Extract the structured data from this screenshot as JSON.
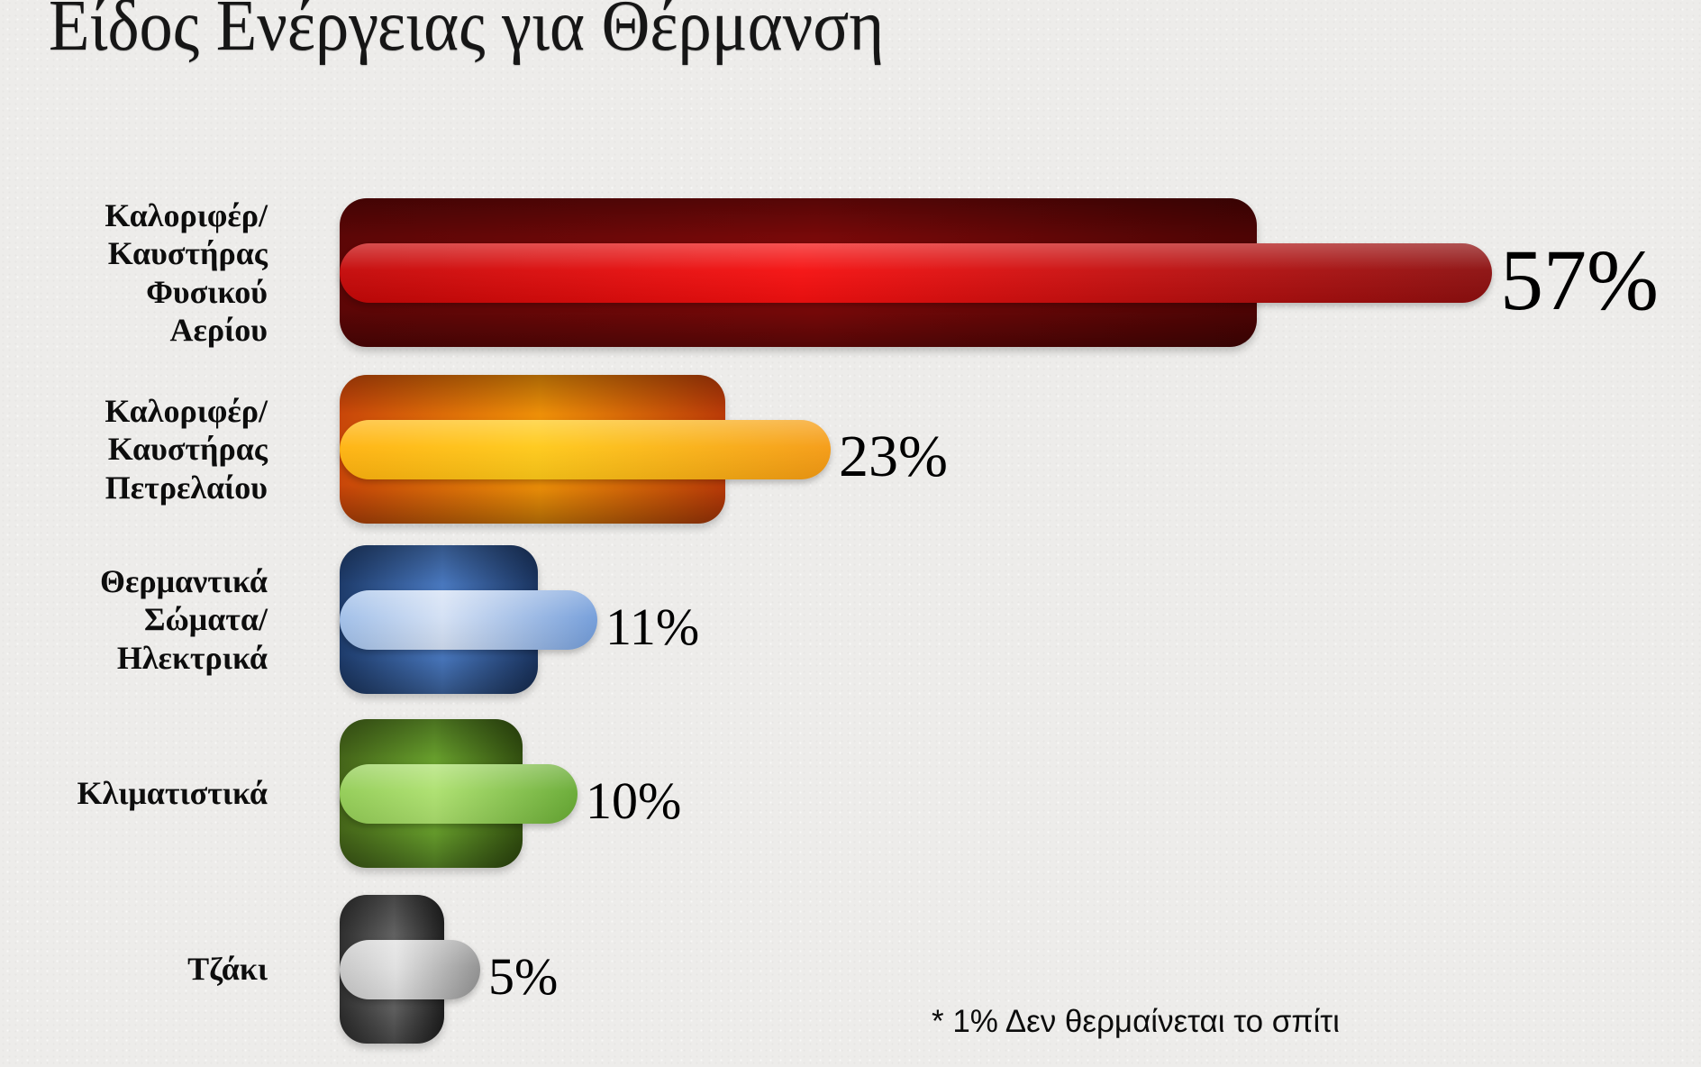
{
  "page": {
    "background_color": "#EDECEA"
  },
  "title": "Είδος Ενέργειας για Θέρμανση",
  "footnote": "* 1% Δεν θερμαίνεται το σπίτι",
  "chart_data": {
    "type": "bar",
    "orientation": "horizontal",
    "title": "Είδος Ενέργειας για Θέρμανση",
    "unit": "%",
    "xlim": [
      0,
      60
    ],
    "grid": false,
    "legend": false,
    "annotation": "* 1% Δεν θερμαίνεται το σπίτι",
    "categories": [
      "Καλοριφέρ/\nΚαυστήρας\nΦυσικού\nΑερίου",
      "Καλοριφέρ/\nΚαυστήρας\nΠετρελαίου",
      "Θερμαντικά\nΣώματα/\nΗλεκτρικά",
      "Κλιματιστικά",
      "Τζάκι"
    ],
    "values": [
      57,
      23,
      11,
      10,
      5
    ],
    "data_labels": [
      "57%",
      "23%",
      "11%",
      "10%",
      "5%"
    ]
  },
  "bars": [
    {
      "label": "Καλοριφέρ/\nΚαυστήρας\nΦυσικού\nΑερίου",
      "value": 57,
      "value_label": "57%",
      "colors": {
        "dark": [
          "#5E0606",
          "#7B0909",
          "#4E0404"
        ],
        "light": [
          "#C40808",
          "#F51010",
          "#8C0F0F"
        ]
      }
    },
    {
      "label": "Καλοριφέρ/\nΚαυστήρας\nΠετρελαίου",
      "value": 23,
      "value_label": "23%",
      "colors": {
        "dark": [
          "#CC4709",
          "#F29208",
          "#BD3B08"
        ],
        "light": [
          "#FFB30F",
          "#FFC919",
          "#F59B13"
        ]
      }
    },
    {
      "label": "Θερμαντικά\nΣώματα/\nΗλεκτρικά",
      "value": 11,
      "value_label": "11%",
      "colors": {
        "dark": [
          "#1E3C6C",
          "#4A7AC2",
          "#1A3460"
        ],
        "light": [
          "#9FBEE8",
          "#D3E0F4",
          "#729CD9"
        ]
      }
    },
    {
      "label": "Κλιματιστικά",
      "value": 10,
      "value_label": "10%",
      "colors": {
        "dark": [
          "#456619",
          "#69A12D",
          "#324F0F"
        ],
        "light": [
          "#92CC55",
          "#ACE06E",
          "#67AA33"
        ]
      }
    },
    {
      "label": "Τζάκι",
      "value": 5,
      "value_label": "5%",
      "colors": {
        "dark": [
          "#2F2F2F",
          "#636363",
          "#1F1F1F"
        ],
        "light": [
          "#C6C6C6",
          "#E0E0E0",
          "#909090"
        ]
      }
    }
  ]
}
